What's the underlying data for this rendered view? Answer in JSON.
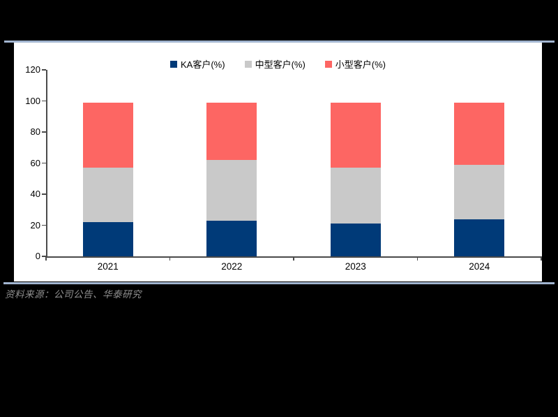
{
  "page": {
    "background": "#000000",
    "rule_color": "#a2b5d0",
    "footer": {
      "source_text": "资料来源：公司公告、华泰研究",
      "color": "#8f8f8f"
    }
  },
  "chart_data": {
    "type": "bar",
    "stacked": true,
    "title": "",
    "xlabel": "",
    "ylabel": "",
    "categories": [
      "2021",
      "2022",
      "2023",
      "2024"
    ],
    "series": [
      {
        "name": "KA客户(%)",
        "color": "#003a78",
        "values": [
          22,
          23,
          21,
          24
        ]
      },
      {
        "name": "中型客户(%)",
        "color": "#c9c9c9",
        "values": [
          35,
          39,
          36,
          35
        ]
      },
      {
        "name": "小型客户(%)",
        "color": "#fd6663",
        "values": [
          42,
          37,
          42,
          40
        ]
      }
    ],
    "ylim": [
      0,
      120
    ],
    "yticks": [
      0,
      20,
      40,
      60,
      80,
      100,
      120
    ],
    "legend_position": "top",
    "grid": false,
    "axis_color": "#4a4a4a",
    "text_color": "#000000"
  }
}
